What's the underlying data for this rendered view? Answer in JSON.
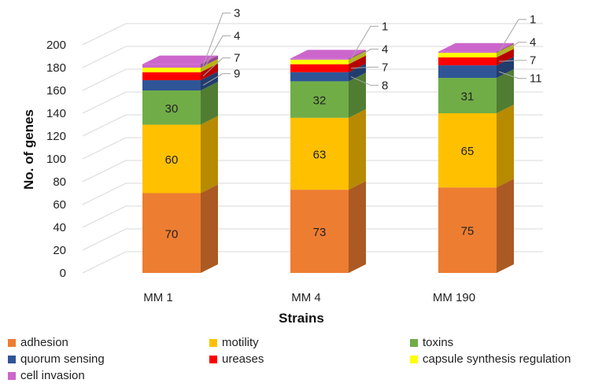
{
  "chart_data": {
    "type": "bar",
    "stacked": true,
    "three_d": true,
    "categories": [
      "MM 1",
      "MM 4",
      "MM 190"
    ],
    "xlabel": "Strains",
    "ylabel": "No. of genes",
    "ylim": [
      0,
      200
    ],
    "yticks": [
      0,
      20,
      40,
      60,
      80,
      100,
      120,
      140,
      160,
      180,
      200
    ],
    "grid": true,
    "legend_position": "bottom",
    "series": [
      {
        "name": "adhesion",
        "color": "#ED7D31",
        "values": [
          70,
          73,
          75
        ]
      },
      {
        "name": "motility",
        "color": "#FFC000",
        "values": [
          60,
          63,
          65
        ]
      },
      {
        "name": "toxins",
        "color": "#70AD47",
        "values": [
          30,
          32,
          31
        ]
      },
      {
        "name": "quorum sensing",
        "color": "#2F5597",
        "values": [
          9,
          8,
          11
        ]
      },
      {
        "name": "ureases",
        "color": "#FF0000",
        "values": [
          7,
          7,
          7
        ]
      },
      {
        "name": "capsule synthesis regulation",
        "color": "#FFFF00",
        "values": [
          4,
          4,
          4
        ]
      },
      {
        "name": "cell invasion",
        "color": "#CC66CC",
        "values": [
          3,
          1,
          1
        ]
      }
    ]
  }
}
